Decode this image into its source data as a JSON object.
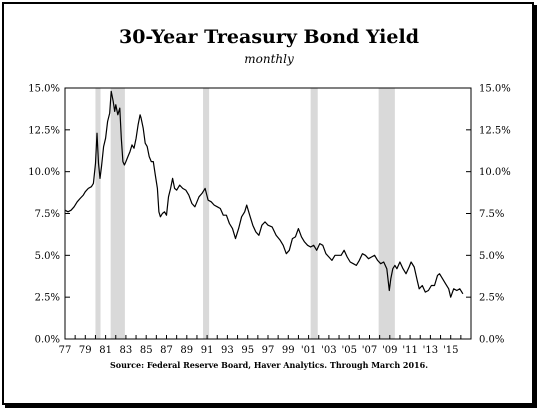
{
  "chart_data": {
    "type": "line",
    "title": "30-Year Treasury Bond Yield",
    "subtitle": "monthly",
    "source": "Source: Federal Reserve Board, Haver Analytics. Through March 2016.",
    "xlim": [
      1977,
      2017
    ],
    "ylim": [
      0,
      15
    ],
    "x_ticks": [
      "77",
      "79",
      "81",
      "83",
      "85",
      "87",
      "89",
      "91",
      "93",
      "95",
      "97",
      "99",
      "'01",
      "'03",
      "'05",
      "'07",
      "'09",
      "'11",
      "'13",
      "'15"
    ],
    "x_tick_years": [
      1977,
      1979,
      1981,
      1983,
      1985,
      1987,
      1989,
      1991,
      1993,
      1995,
      1997,
      1999,
      2001,
      2003,
      2005,
      2007,
      2009,
      2011,
      2013,
      2015
    ],
    "y_ticks": [
      0,
      2.5,
      5,
      7.5,
      10,
      12.5,
      15
    ],
    "y_tick_labels": [
      "0.0%",
      "2.5%",
      "5.0%",
      "7.5%",
      "10.0%",
      "12.5%",
      "15.0%"
    ],
    "recessions": [
      [
        1980.0,
        1980.5
      ],
      [
        1981.5,
        1982.9
      ],
      [
        1990.6,
        1991.2
      ],
      [
        2001.2,
        2001.9
      ],
      [
        2007.9,
        2009.5
      ]
    ],
    "grid": false,
    "legend": "none",
    "colors": {
      "line": "#000000",
      "recession": "#d9d9d9"
    },
    "series": [
      {
        "x": [
          1977.0,
          1977.3,
          1977.6,
          1977.9,
          1978.2,
          1978.5,
          1978.8,
          1979.0,
          1979.3,
          1979.6,
          1979.8,
          1980.0,
          1980.15,
          1980.3,
          1980.45,
          1980.6,
          1980.8,
          1981.0,
          1981.2,
          1981.4,
          1981.55,
          1981.75,
          1981.9,
          1982.0,
          1982.2,
          1982.4,
          1982.55,
          1982.7,
          1982.85,
          1983.0,
          1983.2,
          1983.4,
          1983.6,
          1983.8,
          1984.0,
          1984.2,
          1984.4,
          1984.5,
          1984.7,
          1984.9,
          1985.1,
          1985.3,
          1985.5,
          1985.7,
          1985.9,
          1986.1,
          1986.25,
          1986.4,
          1986.6,
          1986.8,
          1987.0,
          1987.2,
          1987.4,
          1987.6,
          1987.8,
          1988.0,
          1988.3,
          1988.6,
          1988.9,
          1989.2,
          1989.5,
          1989.8,
          1990.2,
          1990.5,
          1990.8,
          1991.1,
          1991.4,
          1991.7,
          1992.0,
          1992.3,
          1992.6,
          1992.9,
          1993.2,
          1993.5,
          1993.8,
          1994.1,
          1994.4,
          1994.7,
          1994.9,
          1995.2,
          1995.5,
          1995.8,
          1996.1,
          1996.4,
          1996.7,
          1997.0,
          1997.4,
          1997.8,
          1998.2,
          1998.5,
          1998.8,
          1999.1,
          1999.4,
          1999.7,
          2000.0,
          2000.3,
          2000.6,
          2000.9,
          2001.2,
          2001.5,
          2001.8,
          2002.1,
          2002.4,
          2002.7,
          2003.0,
          2003.3,
          2003.6,
          2003.9,
          2004.2,
          2004.5,
          2004.8,
          2005.1,
          2005.4,
          2005.7,
          2006.0,
          2006.3,
          2006.6,
          2006.9,
          2007.2,
          2007.5,
          2007.8,
          2008.1,
          2008.4,
          2008.7,
          2008.95,
          2009.1,
          2009.3,
          2009.5,
          2009.7,
          2010.0,
          2010.3,
          2010.6,
          2010.9,
          2011.1,
          2011.4,
          2011.7,
          2011.9,
          2012.2,
          2012.5,
          2012.8,
          2013.1,
          2013.4,
          2013.7,
          2013.9,
          2014.2,
          2014.5,
          2014.8,
          2015.0,
          2015.3,
          2015.6,
          2015.9,
          2016.2
        ],
        "y": [
          7.7,
          7.6,
          7.7,
          7.9,
          8.2,
          8.4,
          8.6,
          8.8,
          9.0,
          9.1,
          9.3,
          10.5,
          12.3,
          10.5,
          9.6,
          10.3,
          11.5,
          12.0,
          13.0,
          13.5,
          14.8,
          14.2,
          13.6,
          14.0,
          13.4,
          13.8,
          12.0,
          10.6,
          10.4,
          10.6,
          10.9,
          11.2,
          11.6,
          11.4,
          12.0,
          12.8,
          13.4,
          13.2,
          12.6,
          11.7,
          11.5,
          10.9,
          10.6,
          10.6,
          9.8,
          9.0,
          7.6,
          7.3,
          7.5,
          7.6,
          7.4,
          8.5,
          9.0,
          9.6,
          9.0,
          8.9,
          9.2,
          9.0,
          8.9,
          8.6,
          8.1,
          7.9,
          8.5,
          8.7,
          9.0,
          8.3,
          8.2,
          8.0,
          7.9,
          7.8,
          7.4,
          7.4,
          6.9,
          6.6,
          6.0,
          6.6,
          7.3,
          7.6,
          8.0,
          7.4,
          6.8,
          6.4,
          6.2,
          6.8,
          7.0,
          6.8,
          6.7,
          6.2,
          5.9,
          5.6,
          5.1,
          5.3,
          6.0,
          6.1,
          6.6,
          6.1,
          5.8,
          5.6,
          5.5,
          5.6,
          5.3,
          5.7,
          5.6,
          5.1,
          4.9,
          4.7,
          5.0,
          5.0,
          5.0,
          5.3,
          4.9,
          4.6,
          4.5,
          4.4,
          4.7,
          5.1,
          5.0,
          4.8,
          4.9,
          5.0,
          4.7,
          4.5,
          4.6,
          4.2,
          2.9,
          3.6,
          4.2,
          4.4,
          4.2,
          4.6,
          4.2,
          3.9,
          4.3,
          4.6,
          4.3,
          3.5,
          3.0,
          3.2,
          2.8,
          2.9,
          3.2,
          3.2,
          3.8,
          3.9,
          3.6,
          3.3,
          3.0,
          2.5,
          3.0,
          2.9,
          3.0,
          2.7
        ]
      }
    ]
  }
}
